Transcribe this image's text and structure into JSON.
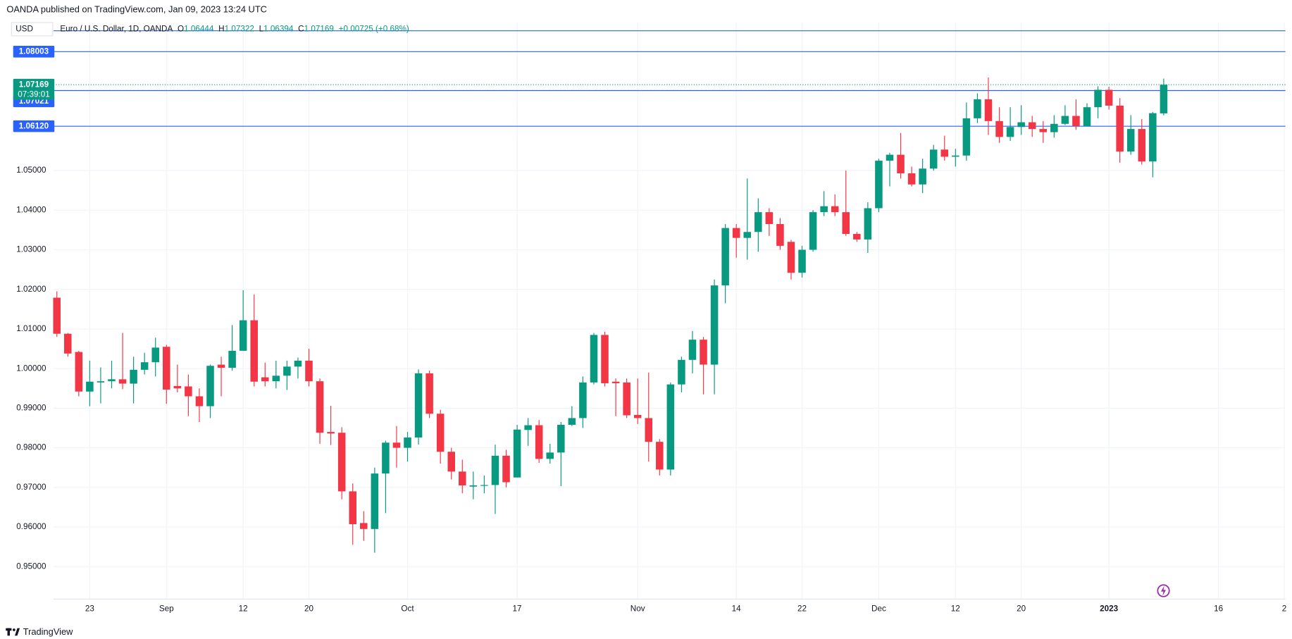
{
  "header": {
    "published": "OANDA published on TradingView.com, Jan 09, 2023 13:24 UTC",
    "brand": "TradingView"
  },
  "chart_data": {
    "type": "candlestick",
    "title": "Euro / U.S. Dollar, 1D, OANDA",
    "currency": "USD",
    "ohlc_labels": [
      "O",
      "H",
      "L",
      "C"
    ],
    "change": "+0.00725 (+0.68%)",
    "countdown": "07:39:01",
    "up_color": "#089981",
    "down_color": "#f23645",
    "line_color": "#2962ff",
    "open": [
      1.0179,
      1.0088,
      1.0042,
      0.9942,
      0.9965,
      0.9968,
      0.9973,
      0.9962,
      0.9997,
      1.0016,
      1.0055,
      0.9956,
      0.9955,
      0.993,
      0.9905,
      1.001,
      1.0002,
      1.0045,
      1.0122,
      0.9978,
      0.9968,
      0.9982,
      1.0005,
      1.002,
      0.9968,
      0.984,
      0.9838,
      0.969,
      0.961,
      0.9595,
      0.9735,
      0.9813,
      0.98,
      0.9826,
      0.9988,
      0.9886,
      0.979,
      0.974,
      0.9702,
      0.9705,
      0.9706,
      0.978,
      0.9725,
      0.9845,
      0.9857,
      0.9772,
      0.9788,
      0.9858,
      0.9875,
      0.9965,
      1.0085,
      0.9967,
      0.9965,
      0.9883,
      0.9875,
      0.9815,
      0.9745,
      0.996,
      1.0022,
      1.0073,
      1.001,
      1.021,
      1.0355,
      1.033,
      1.0345,
      1.0395,
      1.0365,
      1.032,
      1.0242,
      1.03,
      1.0395,
      1.041,
      1.0395,
      1.034,
      1.0326,
      1.0405,
      1.0525,
      1.054,
      1.0493,
      1.0465,
      1.0505,
      1.0553,
      1.0535,
      1.0538,
      1.0632,
      1.068,
      1.0625,
      1.0585,
      1.061,
      1.0622,
      1.0605,
      1.0597,
      1.0618,
      1.0638,
      1.0612,
      1.066,
      1.0704,
      1.0664,
      1.0548,
      1.0605,
      1.0523,
      1.06444
    ],
    "high": [
      1.0195,
      1.009,
      1.0045,
      1.002,
      1.0003,
      1.002,
      1.009,
      1.003,
      1.004,
      1.0078,
      1.006,
      1.001,
      0.9985,
      0.995,
      1.001,
      1.003,
      1.011,
      1.0198,
      1.0187,
      1.0015,
      1.002,
      1.002,
      1.0028,
      1.005,
      0.9975,
      0.9906,
      0.9852,
      0.971,
      0.964,
      0.975,
      0.9818,
      0.9855,
      0.984,
      0.9998,
      0.9995,
      0.9896,
      0.98,
      0.977,
      0.974,
      0.973,
      0.9808,
      0.9795,
      0.9858,
      0.9875,
      0.987,
      0.981,
      0.9865,
      0.9905,
      0.998,
      1.009,
      1.0093,
      0.9975,
      0.9975,
      0.9975,
      0.999,
      0.9822,
      0.9965,
      1.003,
      1.0095,
      1.008,
      1.0225,
      1.0365,
      1.0365,
      1.048,
      1.043,
      1.0405,
      1.038,
      1.0325,
      1.031,
      1.04,
      1.0448,
      1.044,
      1.05,
      1.0345,
      1.042,
      1.053,
      1.0545,
      1.0595,
      1.051,
      1.053,
      1.0565,
      1.0588,
      1.0555,
      1.0672,
      1.0695,
      1.0735,
      1.066,
      1.066,
      1.0665,
      1.0638,
      1.0625,
      1.064,
      1.0665,
      1.068,
      1.067,
      1.0713,
      1.0712,
      1.0683,
      1.064,
      1.063,
      1.0648,
      1.07322
    ],
    "low": [
      1.008,
      1.003,
      0.993,
      0.9905,
      0.9912,
      0.995,
      0.9948,
      0.9912,
      0.9985,
      0.998,
      0.9911,
      0.994,
      0.988,
      0.9865,
      0.9875,
      0.993,
      0.9995,
      1.0045,
      0.9955,
      0.9955,
      0.995,
      0.9946,
      0.9975,
      0.9955,
      0.981,
      0.9807,
      0.967,
      0.9555,
      0.9565,
      0.9535,
      0.9635,
      0.975,
      0.9765,
      0.9808,
      0.9875,
      0.976,
      0.972,
      0.9685,
      0.967,
      0.9685,
      0.9633,
      0.97,
      0.9725,
      0.9805,
      0.9762,
      0.976,
      0.9703,
      0.9855,
      0.985,
      0.996,
      0.9955,
      0.988,
      0.9875,
      0.986,
      0.9765,
      0.973,
      0.973,
      0.994,
      0.9988,
      0.9935,
      0.9935,
      1.0165,
      1.028,
      1.0275,
      1.0295,
      1.0335,
      1.03,
      1.0225,
      1.023,
      1.0295,
      1.0385,
      1.0385,
      1.0335,
      1.032,
      1.0292,
      1.0395,
      1.046,
      1.048,
      1.046,
      1.0443,
      1.05,
      1.0525,
      1.051,
      1.0525,
      1.062,
      1.059,
      1.057,
      1.0575,
      1.059,
      1.0585,
      1.057,
      1.0583,
      1.0615,
      1.0603,
      1.0612,
      1.0632,
      1.0654,
      1.052,
      1.054,
      1.0515,
      1.0483,
      1.06394
    ],
    "close": [
      1.0088,
      1.0038,
      0.9942,
      0.9967,
      0.9968,
      0.9973,
      0.9962,
      0.9997,
      1.0016,
      1.0053,
      0.9947,
      0.995,
      0.993,
      0.9905,
      1.0007,
      1.0002,
      1.0045,
      1.0122,
      0.9967,
      0.9968,
      0.9982,
      1.0005,
      1.002,
      0.9968,
      0.9838,
      0.9836,
      0.969,
      0.9607,
      0.9595,
      0.9735,
      0.9813,
      0.98,
      0.9826,
      0.9988,
      0.9886,
      0.979,
      0.974,
      0.9705,
      0.9705,
      0.9706,
      0.978,
      0.9713,
      0.9846,
      0.9857,
      0.9772,
      0.9788,
      0.9858,
      0.9875,
      0.9965,
      1.0085,
      0.9963,
      0.9963,
      0.9882,
      0.9875,
      0.9815,
      0.9745,
      0.996,
      1.0022,
      1.0073,
      1.001,
      1.021,
      1.0355,
      1.033,
      1.0345,
      1.0395,
      1.0365,
      1.031,
      1.0242,
      1.03,
      1.0395,
      1.041,
      1.0395,
      1.034,
      1.0326,
      1.0405,
      1.0525,
      1.054,
      1.0493,
      1.0465,
      1.0505,
      1.0553,
      1.0535,
      1.0538,
      1.0632,
      1.068,
      1.0625,
      1.0585,
      1.061,
      1.0622,
      1.0605,
      1.0597,
      1.0618,
      1.0638,
      1.0612,
      1.066,
      1.0704,
      1.0664,
      1.0548,
      1.0605,
      1.0523,
      1.0645,
      1.07169
    ],
    "ylim": [
      0.9418,
      1.0874
    ],
    "yticks": [
      {
        "value": 0.95,
        "label": "0.95000"
      },
      {
        "value": 0.96,
        "label": "0.96000"
      },
      {
        "value": 0.97,
        "label": "0.97000"
      },
      {
        "value": 0.98,
        "label": "0.98000"
      },
      {
        "value": 0.99,
        "label": "0.99000"
      },
      {
        "value": 1.0,
        "label": "1.00000"
      },
      {
        "value": 1.01,
        "label": "1.01000"
      },
      {
        "value": 1.02,
        "label": "1.02000"
      },
      {
        "value": 1.03,
        "label": "1.03000"
      },
      {
        "value": 1.04,
        "label": "1.04000"
      },
      {
        "value": 1.05,
        "label": "1.05000"
      }
    ],
    "xticks": [
      {
        "value": 3,
        "label": "23"
      },
      {
        "value": 10,
        "label": "Sep"
      },
      {
        "value": 17,
        "label": "12"
      },
      {
        "value": 23,
        "label": "20"
      },
      {
        "value": 32,
        "label": "Oct"
      },
      {
        "value": 42,
        "label": "17"
      },
      {
        "value": 53,
        "label": "Nov"
      },
      {
        "value": 62,
        "label": "14"
      },
      {
        "value": 68,
        "label": "22"
      },
      {
        "value": 75,
        "label": "Dec"
      },
      {
        "value": 82,
        "label": "12"
      },
      {
        "value": 88,
        "label": "20"
      },
      {
        "value": 96,
        "label": "2023"
      },
      {
        "value": 106,
        "label": "16"
      },
      {
        "value": 112,
        "label": "2"
      }
    ],
    "top_line": 1.0853,
    "price_lines": [
      1.08003,
      1.07021,
      {
        "value": 1.0612,
        "label": "1.06120"
      }
    ],
    "grid": true
  }
}
